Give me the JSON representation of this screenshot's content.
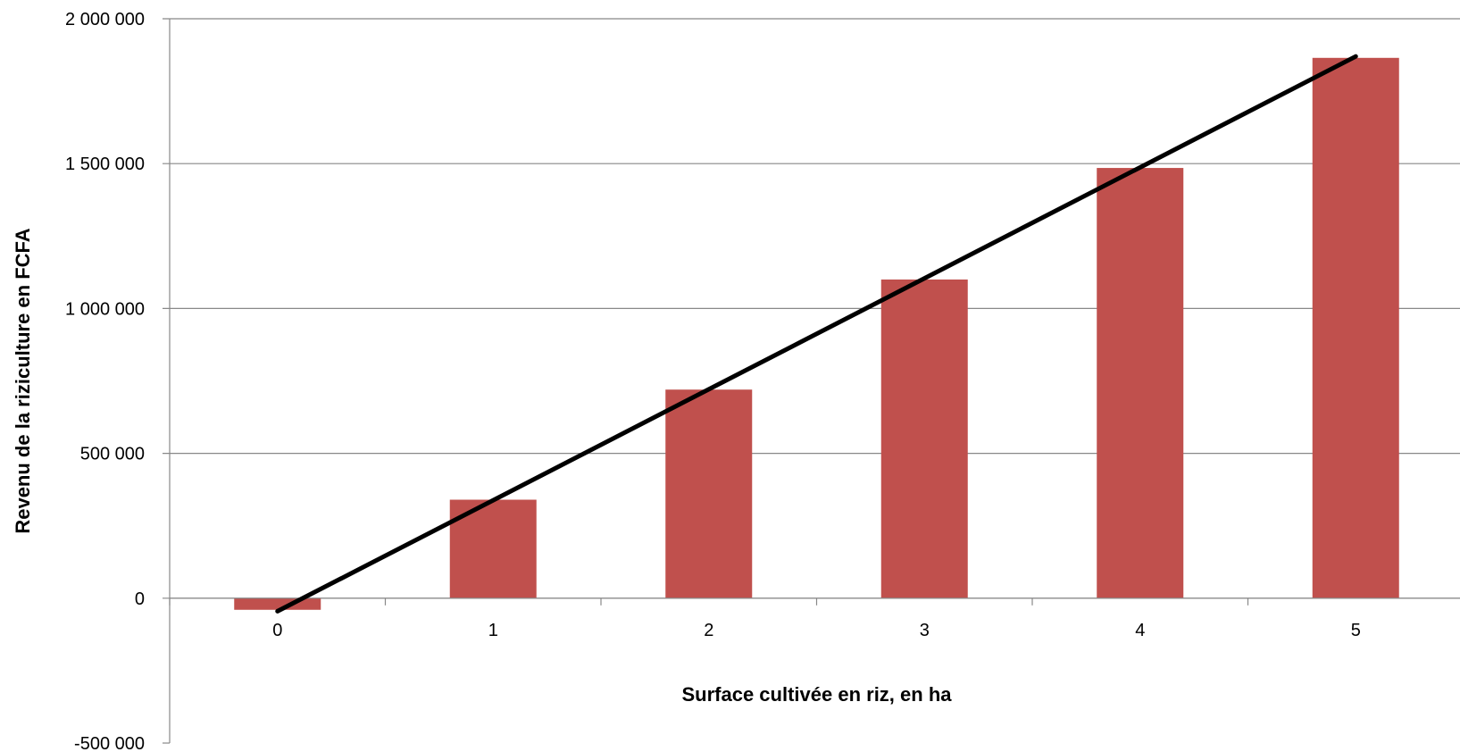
{
  "chart_data": {
    "type": "bar",
    "categories": [
      "0",
      "1",
      "2",
      "3",
      "4",
      "5"
    ],
    "values": [
      -40000,
      340000,
      720000,
      1100000,
      1485000,
      1865000
    ],
    "trendline": {
      "type": "linear",
      "start": -45000,
      "end": 1870000
    },
    "xlabel": "Surface cultivée en riz, en ha",
    "ylabel": "Revenu de la riziculture en FCFA",
    "ylim": [
      -500000,
      2000000
    ],
    "yticks": [
      -500000,
      0,
      500000,
      1000000,
      1500000,
      2000000
    ],
    "ytick_labels": [
      "-500 000",
      "0",
      "500 000",
      "1 000 000",
      "1 500 000",
      "2 000 000"
    ],
    "grid": "horizontal",
    "legend": "none",
    "colors": {
      "bar": "#C0504D",
      "trendline": "#000000",
      "grid": "#888888",
      "axis": "#888888"
    }
  }
}
